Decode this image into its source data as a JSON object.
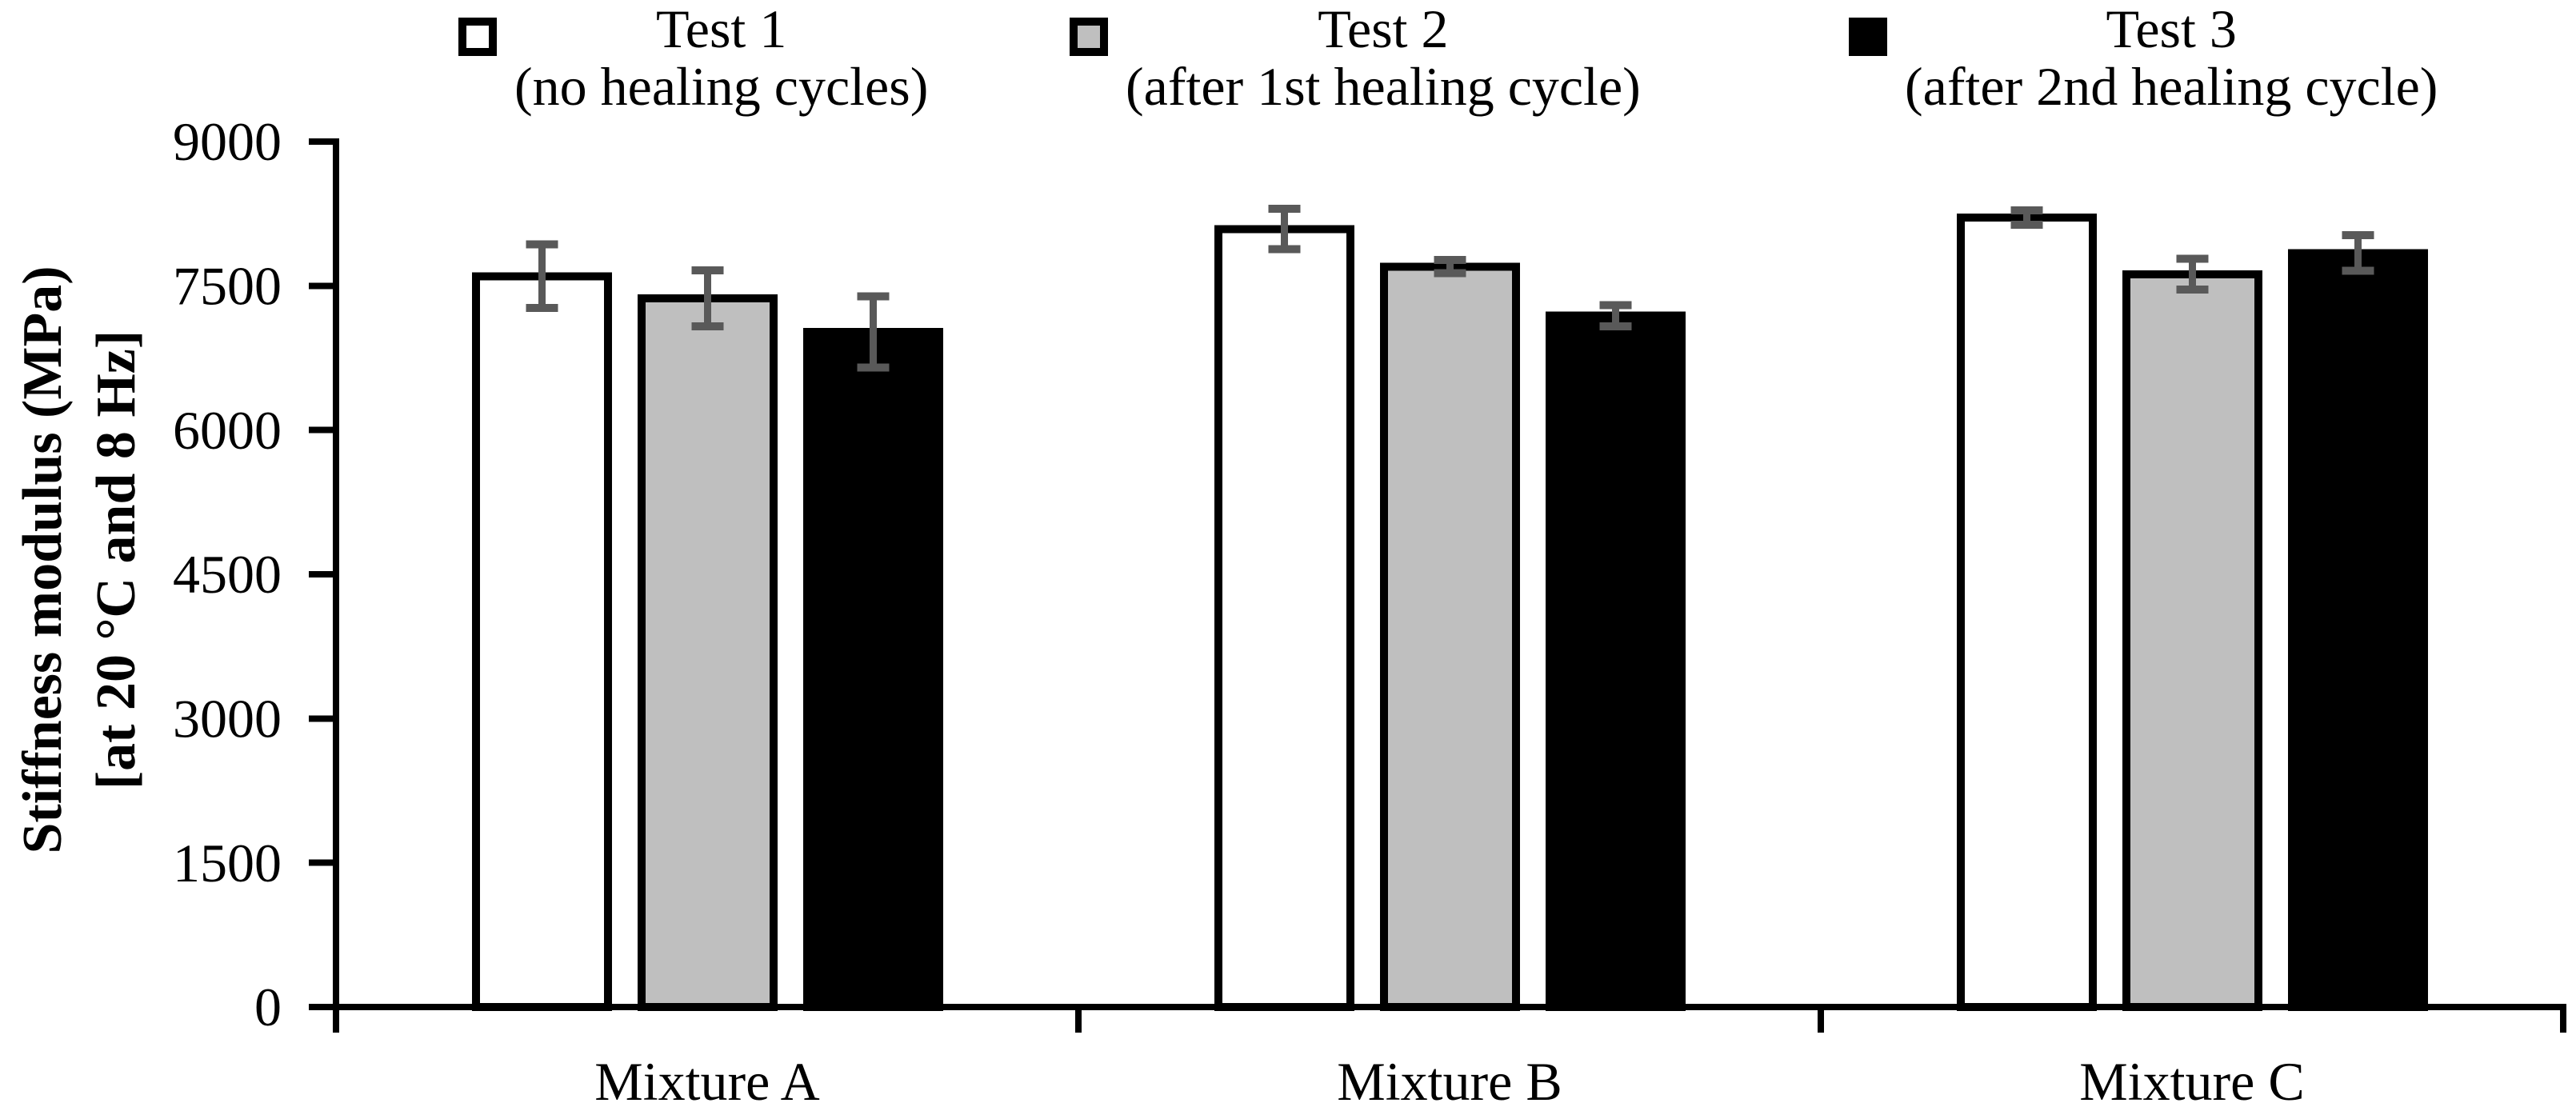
{
  "chart_data": {
    "type": "bar",
    "title": "",
    "ylabel_lines": [
      "Stiffness modulus (MPa)",
      "[at 20 °C and 8 Hz]"
    ],
    "xlabel": "",
    "ylim": [
      0,
      9000
    ],
    "yticks": [
      "0",
      "1500",
      "3000",
      "4500",
      "6000",
      "7500",
      "9000"
    ],
    "ytick_values": [
      0,
      1500,
      3000,
      4500,
      6000,
      7500,
      9000
    ],
    "grid": false,
    "legend_position": "top",
    "error_bars": true,
    "categories": [
      "Mixture A",
      "Mixture B",
      "Mixture C"
    ],
    "series": [
      {
        "name": "Test 1",
        "legend_line2": "(no healing cycles)",
        "fill": "#ffffff",
        "values": [
          7600,
          8090,
          8210
        ],
        "errors": [
          330,
          210,
          75
        ]
      },
      {
        "name": "Test 2",
        "legend_line2": "(after 1st healing cycle)",
        "fill": "#bfbfbf",
        "values": [
          7370,
          7700,
          7620
        ],
        "errors": [
          290,
          70,
          160
        ]
      },
      {
        "name": "Test 3",
        "legend_line2": "(after 2nd healing cycle)",
        "fill": "#000000",
        "values": [
          7020,
          7190,
          7840
        ],
        "errors": [
          370,
          110,
          185
        ]
      }
    ],
    "colors": {
      "axis": "#000000",
      "bar_border": "#000000",
      "error_bar": "#595959",
      "text": "#000000",
      "background": "#ffffff"
    }
  }
}
